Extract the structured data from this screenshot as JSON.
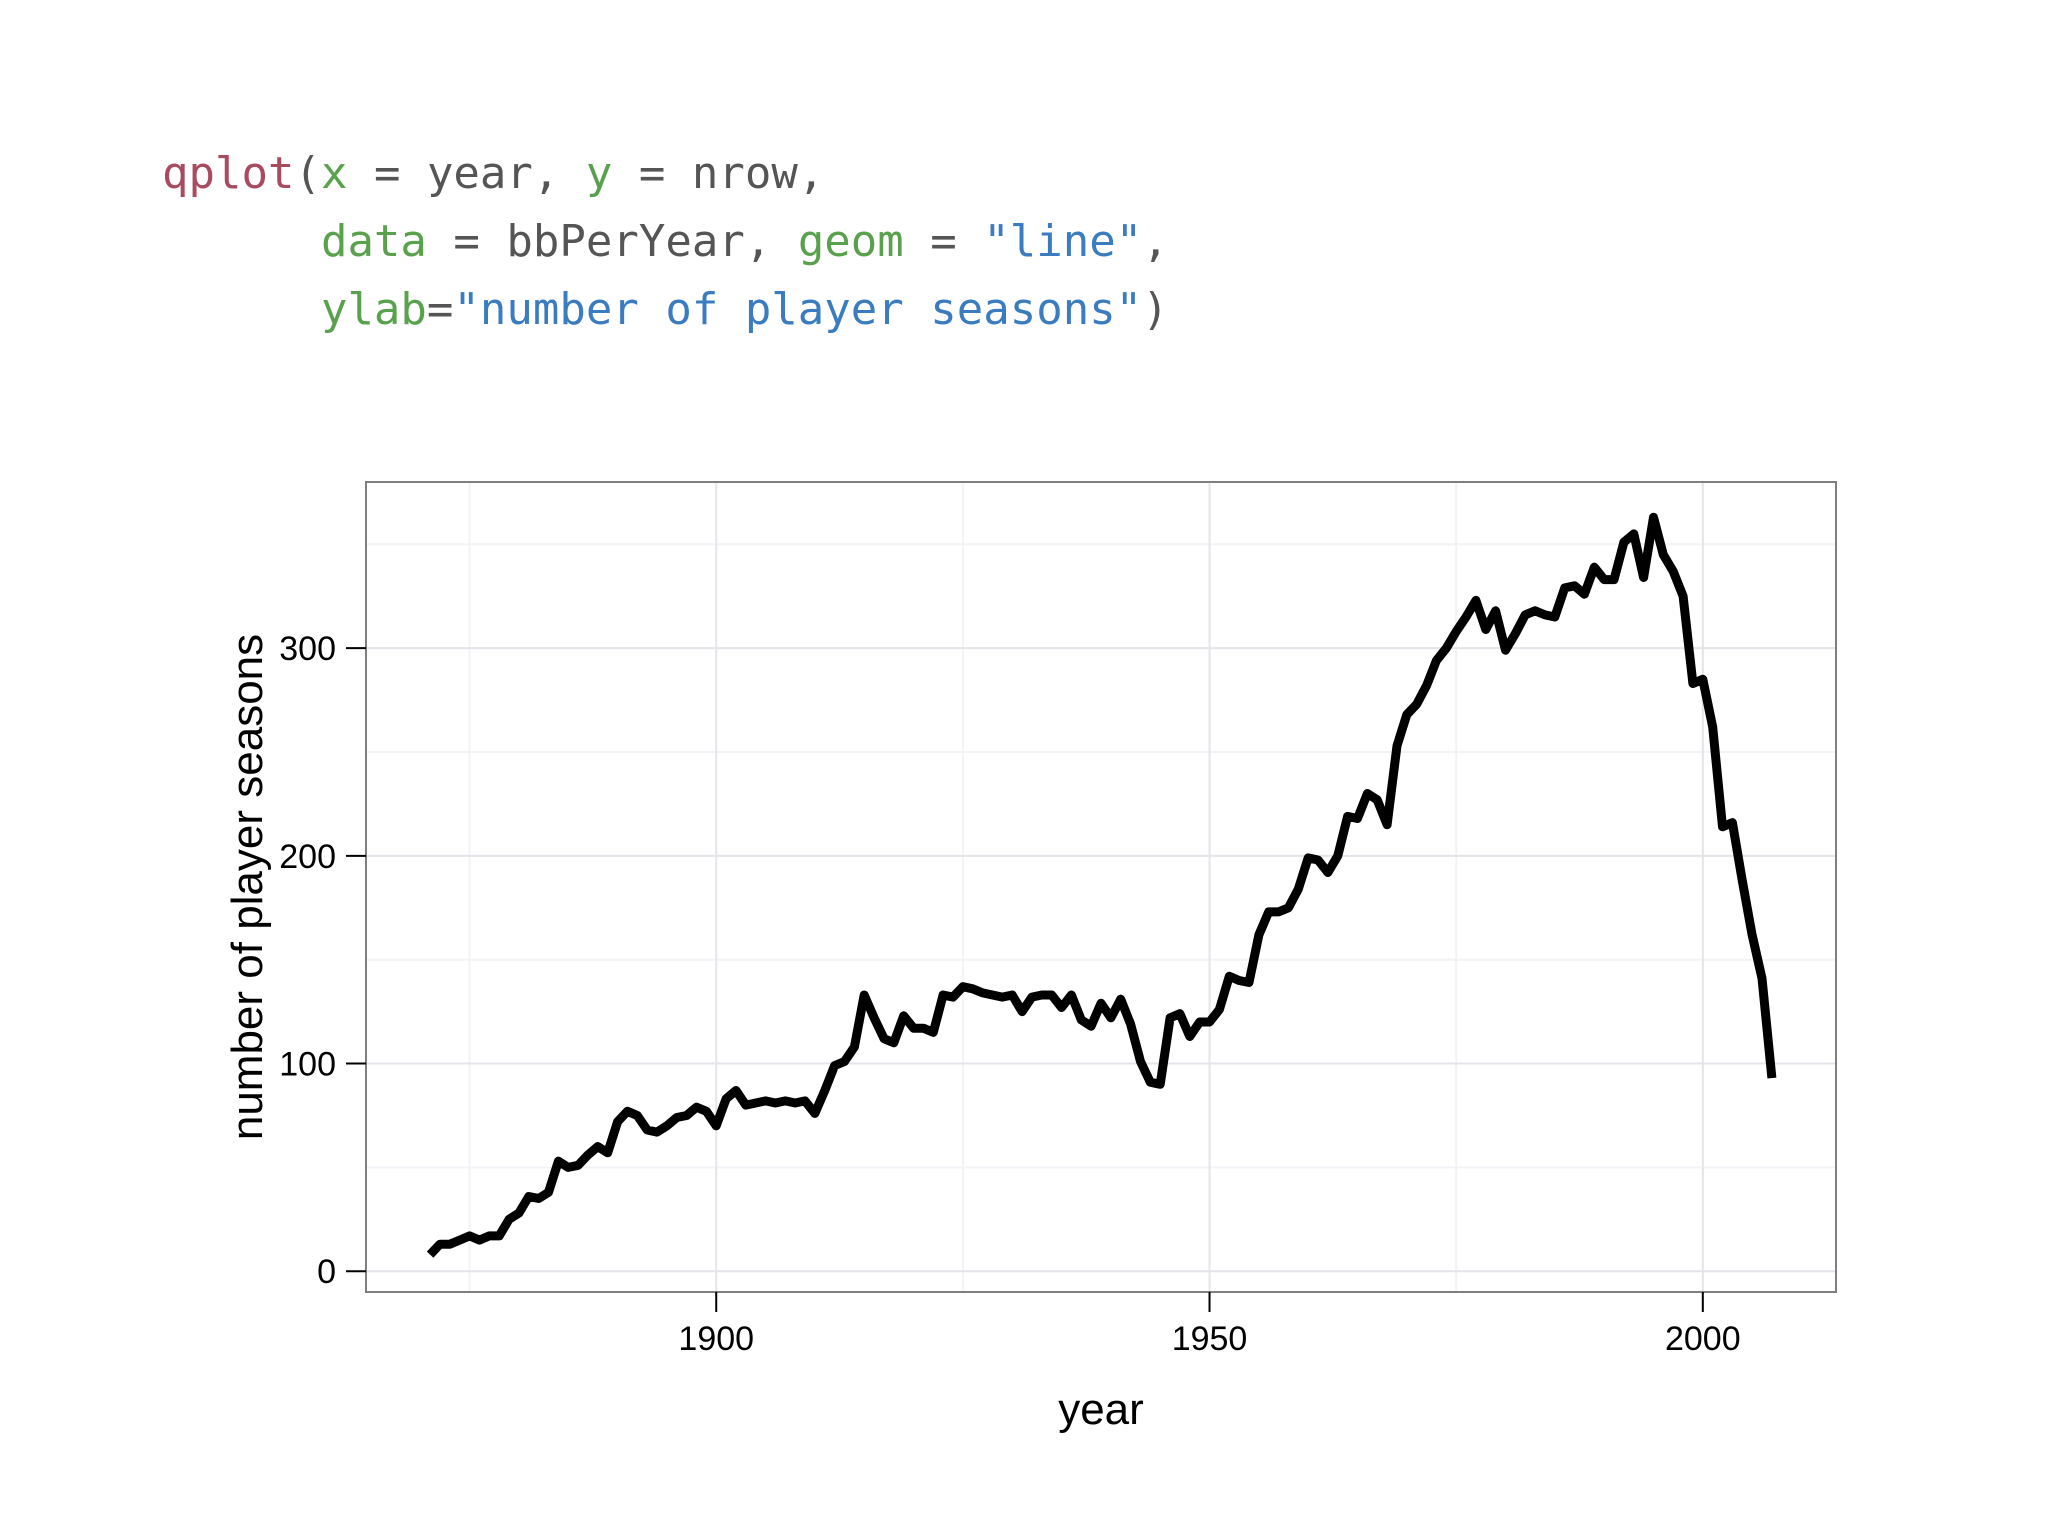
{
  "code": {
    "lines": [
      [
        {
          "t": "qplot",
          "k": "fn"
        },
        {
          "t": "(",
          "k": "pun"
        },
        {
          "t": "x",
          "k": "arg"
        },
        {
          "t": " = ",
          "k": "pun"
        },
        {
          "t": "year",
          "k": "id"
        },
        {
          "t": ", ",
          "k": "pun"
        },
        {
          "t": "y",
          "k": "arg"
        },
        {
          "t": " = ",
          "k": "pun"
        },
        {
          "t": "nrow",
          "k": "id"
        },
        {
          "t": ",",
          "k": "pun"
        }
      ],
      [
        {
          "t": "      ",
          "k": "pun"
        },
        {
          "t": "data",
          "k": "arg"
        },
        {
          "t": " = ",
          "k": "pun"
        },
        {
          "t": "bbPerYear",
          "k": "id"
        },
        {
          "t": ", ",
          "k": "pun"
        },
        {
          "t": "geom",
          "k": "arg"
        },
        {
          "t": " = ",
          "k": "pun"
        },
        {
          "t": "\"line\"",
          "k": "str"
        },
        {
          "t": ",",
          "k": "pun"
        }
      ],
      [
        {
          "t": "      ",
          "k": "pun"
        },
        {
          "t": "ylab",
          "k": "arg"
        },
        {
          "t": "=",
          "k": "pun"
        },
        {
          "t": "\"number of player seasons\"",
          "k": "str"
        },
        {
          "t": ")",
          "k": "pun"
        }
      ]
    ]
  },
  "chart_data": {
    "type": "line",
    "title": "",
    "xlabel": "year",
    "ylabel": "number of player seasons",
    "xlim": [
      1864.5,
      2013.5
    ],
    "ylim": [
      -10,
      380
    ],
    "x_ticks": [
      1900,
      1950,
      2000
    ],
    "y_ticks": [
      0,
      100,
      200,
      300
    ],
    "grid": true,
    "legend": "none",
    "line_color": "#000000",
    "series": [
      {
        "x": [
          1871,
          1872,
          1873,
          1874,
          1875,
          1876,
          1877,
          1878,
          1879,
          1880,
          1881,
          1882,
          1883,
          1884,
          1885,
          1886,
          1887,
          1888,
          1889,
          1890,
          1891,
          1892,
          1893,
          1894,
          1895,
          1896,
          1897,
          1898,
          1899,
          1900,
          1901,
          1902,
          1903,
          1904,
          1905,
          1906,
          1907,
          1908,
          1909,
          1910,
          1911,
          1912,
          1913,
          1914,
          1915,
          1916,
          1917,
          1918,
          1919,
          1920,
          1921,
          1922,
          1923,
          1924,
          1925,
          1926,
          1927,
          1928,
          1929,
          1930,
          1931,
          1932,
          1933,
          1934,
          1935,
          1936,
          1937,
          1938,
          1939,
          1940,
          1941,
          1942,
          1943,
          1944,
          1945,
          1946,
          1947,
          1948,
          1949,
          1950,
          1951,
          1952,
          1953,
          1954,
          1955,
          1956,
          1957,
          1958,
          1959,
          1960,
          1961,
          1962,
          1963,
          1964,
          1965,
          1966,
          1967,
          1968,
          1969,
          1970,
          1971,
          1972,
          1973,
          1974,
          1975,
          1976,
          1977,
          1978,
          1979,
          1980,
          1981,
          1982,
          1983,
          1984,
          1985,
          1986,
          1987,
          1988,
          1989,
          1990,
          1991,
          1992,
          1993,
          1994,
          1995,
          1996,
          1997,
          1998,
          1999,
          2000,
          2001,
          2002,
          2003,
          2004,
          2005,
          2006,
          2007
        ],
        "y": [
          8,
          13,
          13,
          15,
          17,
          15,
          17,
          17,
          25,
          28,
          36,
          35,
          38,
          53,
          50,
          51,
          56,
          60,
          57,
          72,
          77,
          75,
          68,
          67,
          70,
          74,
          75,
          79,
          77,
          70,
          83,
          87,
          80,
          81,
          82,
          81,
          82,
          81,
          82,
          76,
          87,
          99,
          101,
          108,
          133,
          122,
          112,
          110,
          123,
          117,
          117,
          115,
          133,
          132,
          137,
          136,
          134,
          133,
          132,
          133,
          125,
          132,
          133,
          133,
          127,
          133,
          121,
          118,
          129,
          122,
          131,
          119,
          101,
          91,
          90,
          122,
          124,
          113,
          120,
          120,
          126,
          142,
          140,
          139,
          162,
          173,
          173,
          175,
          184,
          199,
          198,
          192,
          200,
          219,
          218,
          230,
          227,
          215,
          253,
          268,
          273,
          282,
          294,
          300,
          308,
          315,
          323,
          309,
          318,
          299,
          307,
          316,
          318,
          316,
          315,
          329,
          330,
          326,
          339,
          333,
          333,
          351,
          355,
          334,
          363,
          345,
          337,
          325,
          283,
          285,
          262,
          214,
          216,
          188,
          162,
          141,
          93
        ]
      }
    ]
  }
}
